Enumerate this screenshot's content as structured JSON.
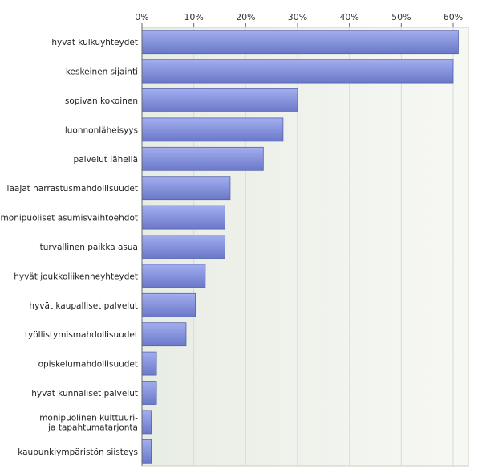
{
  "chart_data": {
    "type": "bar",
    "orientation": "horizontal",
    "categories": [
      "hyvät kulkuyhteydet",
      "keskeinen sijainti",
      "sopivan kokoinen",
      "luonnonläheisyys",
      "palvelut lähellä",
      "laajat harrastusmahdollisuudet",
      "monipuoliset asumisvaihtoehdot",
      "turvallinen paikka asua",
      "hyvät joukkoliikenneyhteydet",
      "hyvät kaupalliset palvelut",
      "työllistymismahdollisuudet",
      "opiskelumahdollisuudet",
      "hyvät kunnaliset palvelut",
      "monipuolinen kulttuuri- ja tapahtumatarjonta",
      "kaupunkiympäristön siisteys"
    ],
    "values": [
      61,
      60,
      30,
      27.2,
      23.4,
      17,
      16,
      16,
      12.2,
      10.3,
      8.5,
      2.8,
      2.8,
      1.8,
      1.8
    ],
    "xlim": [
      0,
      65
    ],
    "xticks": [
      0,
      10,
      20,
      30,
      40,
      50,
      60
    ],
    "tick_labels": [
      "0%",
      "10%",
      "20%",
      "30%",
      "40%",
      "50%",
      "60%"
    ],
    "unit": "%",
    "title": "",
    "xlabel": "",
    "ylabel": "",
    "grid": true,
    "legend": "none",
    "colors": {
      "bar_top": "#a3aef0",
      "bar_bottom": "#6a78c8",
      "bar_edge": "#5562b0",
      "grid": "#d6dcd0",
      "plot_bg_left": "#e8ede4",
      "plot_bg_right": "#f7f8f4",
      "axis": "#666666"
    }
  }
}
